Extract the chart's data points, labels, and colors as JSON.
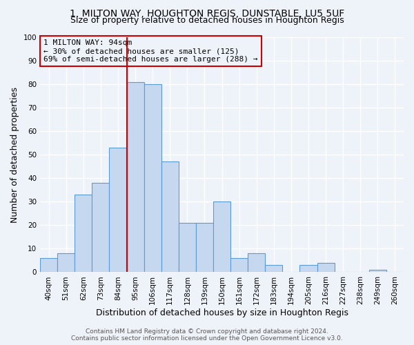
{
  "title": "1, MILTON WAY, HOUGHTON REGIS, DUNSTABLE, LU5 5UF",
  "subtitle": "Size of property relative to detached houses in Houghton Regis",
  "xlabel": "Distribution of detached houses by size in Houghton Regis",
  "ylabel": "Number of detached properties",
  "bar_labels": [
    "40sqm",
    "51sqm",
    "62sqm",
    "73sqm",
    "84sqm",
    "95sqm",
    "106sqm",
    "117sqm",
    "128sqm",
    "139sqm",
    "150sqm",
    "161sqm",
    "172sqm",
    "183sqm",
    "194sqm",
    "205sqm",
    "216sqm",
    "227sqm",
    "238sqm",
    "249sqm",
    "260sqm"
  ],
  "bar_values": [
    6,
    8,
    33,
    38,
    53,
    81,
    80,
    47,
    21,
    21,
    30,
    6,
    8,
    3,
    0,
    3,
    4,
    0,
    0,
    1,
    0
  ],
  "bar_color": "#c5d8f0",
  "bar_edge_color": "#5b9bd5",
  "ylim": [
    0,
    100
  ],
  "yticks": [
    0,
    10,
    20,
    30,
    40,
    50,
    60,
    70,
    80,
    90,
    100
  ],
  "vline_x_index": 5,
  "vline_color": "#cc0000",
  "annotation_title": "1 MILTON WAY: 94sqm",
  "annotation_line1": "← 30% of detached houses are smaller (125)",
  "annotation_line2": "69% of semi-detached houses are larger (288) →",
  "annotation_box_color": "#cc0000",
  "footer1": "Contains HM Land Registry data © Crown copyright and database right 2024.",
  "footer2": "Contains public sector information licensed under the Open Government Licence v3.0.",
  "bg_color": "#eef2f9",
  "grid_color": "#ffffff",
  "title_fontsize": 10,
  "subtitle_fontsize": 9,
  "axis_label_fontsize": 9,
  "tick_fontsize": 7.5,
  "annotation_fontsize": 8,
  "footer_fontsize": 6.5
}
